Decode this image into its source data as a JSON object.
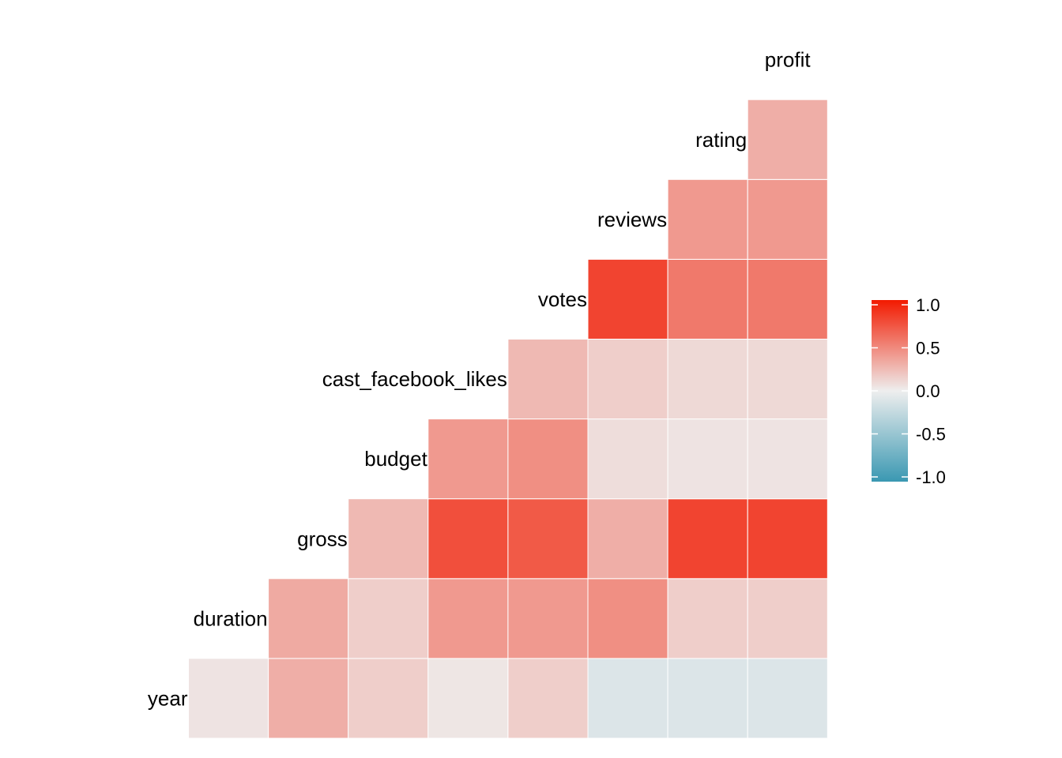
{
  "chart_data": {
    "type": "heatmap",
    "subtype": "correlation-matrix-lower-triangle",
    "variables": [
      "year",
      "duration",
      "gross",
      "budget",
      "cast_facebook_likes",
      "votes",
      "reviews",
      "rating",
      "profit"
    ],
    "cells": [
      {
        "row": "duration",
        "col": "year",
        "value": 0.05
      },
      {
        "row": "gross",
        "col": "year",
        "value": 0.3
      },
      {
        "row": "gross",
        "col": "duration",
        "value": 0.32
      },
      {
        "row": "budget",
        "col": "year",
        "value": 0.15
      },
      {
        "row": "budget",
        "col": "duration",
        "value": 0.15
      },
      {
        "row": "budget",
        "col": "gross",
        "value": 0.25
      },
      {
        "row": "cast_facebook_likes",
        "col": "year",
        "value": 0.04
      },
      {
        "row": "cast_facebook_likes",
        "col": "duration",
        "value": 0.4
      },
      {
        "row": "cast_facebook_likes",
        "col": "gross",
        "value": 0.75
      },
      {
        "row": "cast_facebook_likes",
        "col": "budget",
        "value": 0.4
      },
      {
        "row": "votes",
        "col": "year",
        "value": 0.15
      },
      {
        "row": "votes",
        "col": "duration",
        "value": 0.4
      },
      {
        "row": "votes",
        "col": "gross",
        "value": 0.7
      },
      {
        "row": "votes",
        "col": "budget",
        "value": 0.45
      },
      {
        "row": "votes",
        "col": "cast_facebook_likes",
        "value": 0.25
      },
      {
        "row": "reviews",
        "col": "year",
        "value": -0.1
      },
      {
        "row": "reviews",
        "col": "duration",
        "value": 0.45
      },
      {
        "row": "reviews",
        "col": "gross",
        "value": 0.3
      },
      {
        "row": "reviews",
        "col": "budget",
        "value": 0.08
      },
      {
        "row": "reviews",
        "col": "cast_facebook_likes",
        "value": 0.15
      },
      {
        "row": "reviews",
        "col": "votes",
        "value": 0.8
      },
      {
        "row": "rating",
        "col": "year",
        "value": -0.1
      },
      {
        "row": "rating",
        "col": "duration",
        "value": 0.15
      },
      {
        "row": "rating",
        "col": "gross",
        "value": 0.8
      },
      {
        "row": "rating",
        "col": "budget",
        "value": 0.05
      },
      {
        "row": "rating",
        "col": "cast_facebook_likes",
        "value": 0.1
      },
      {
        "row": "rating",
        "col": "votes",
        "value": 0.55
      },
      {
        "row": "rating",
        "col": "reviews",
        "value": 0.4
      },
      {
        "row": "profit",
        "col": "year",
        "value": -0.1
      },
      {
        "row": "profit",
        "col": "duration",
        "value": 0.15
      },
      {
        "row": "profit",
        "col": "gross",
        "value": 0.8
      },
      {
        "row": "profit",
        "col": "budget",
        "value": 0.05
      },
      {
        "row": "profit",
        "col": "cast_facebook_likes",
        "value": 0.1
      },
      {
        "row": "profit",
        "col": "votes",
        "value": 0.55
      },
      {
        "row": "profit",
        "col": "reviews",
        "value": 0.4
      },
      {
        "row": "profit",
        "col": "rating",
        "value": 0.3
      }
    ],
    "color_scale": {
      "low": "#3A98B2",
      "mid": "#EEEEEE",
      "high": "#F21A00",
      "limits": [
        -1.0,
        1.0
      ],
      "ticks": [
        "1.0",
        "0.5",
        "0.0",
        "-0.5",
        "-1.0"
      ],
      "tick_values": [
        1.0,
        0.5,
        0.0,
        -0.5,
        -1.0
      ]
    },
    "legend_position": "right",
    "grid": false,
    "title": "",
    "xlabel": "",
    "ylabel": ""
  }
}
